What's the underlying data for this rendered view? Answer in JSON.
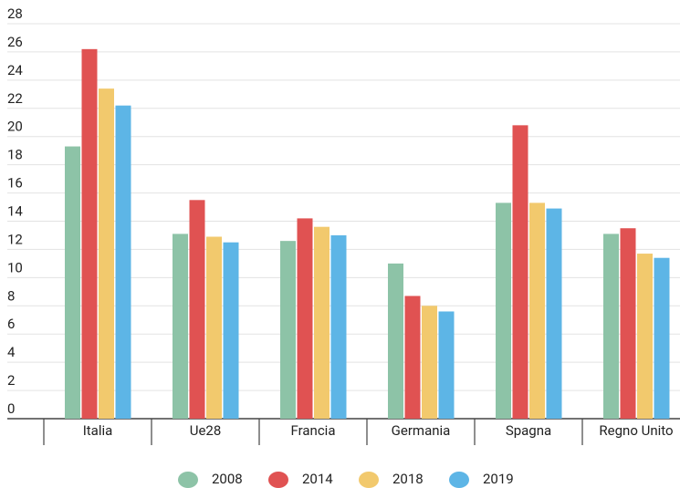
{
  "chart_data": {
    "type": "bar",
    "categories": [
      "Italia",
      "Ue28",
      "Francia",
      "Germania",
      "Spagna",
      "Regno Unito"
    ],
    "series": [
      {
        "name": "2008",
        "color": "#8dc3a7",
        "values": [
          19.3,
          13.1,
          12.6,
          11.0,
          15.3,
          13.1
        ]
      },
      {
        "name": "2014",
        "color": "#e05252",
        "values": [
          26.2,
          15.5,
          14.2,
          8.7,
          20.8,
          13.5
        ]
      },
      {
        "name": "2018",
        "color": "#f2c96d",
        "values": [
          23.4,
          12.9,
          13.6,
          8.0,
          15.3,
          11.7
        ]
      },
      {
        "name": "2019",
        "color": "#5db5e6",
        "values": [
          22.2,
          12.5,
          13.0,
          7.6,
          14.9,
          11.4
        ]
      }
    ],
    "ylim": [
      0,
      28
    ],
    "yticks": [
      0,
      2,
      4,
      6,
      8,
      10,
      12,
      14,
      16,
      18,
      20,
      22,
      24,
      26,
      28
    ],
    "grid": true,
    "legend": "bottom"
  }
}
